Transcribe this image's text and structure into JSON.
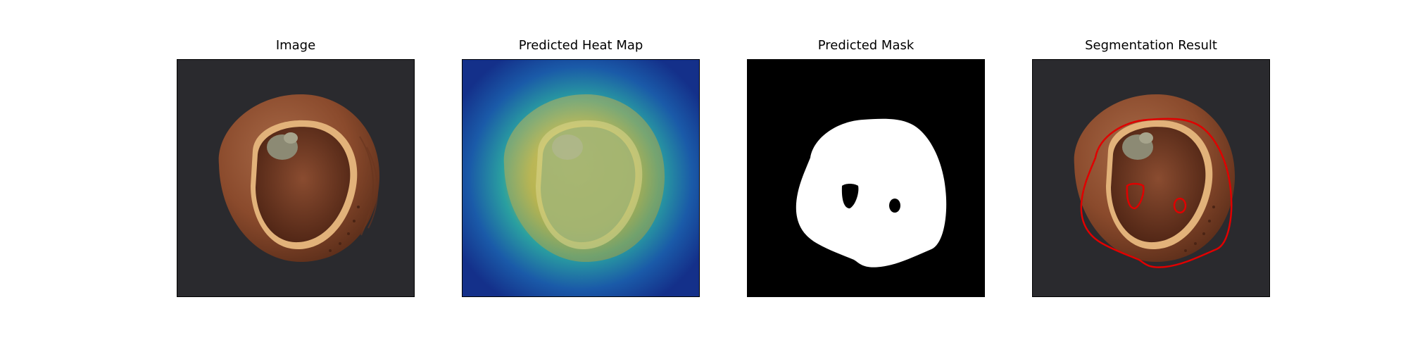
{
  "figure": {
    "panels": [
      {
        "title": "Image"
      },
      {
        "title": "Predicted Heat Map"
      },
      {
        "title": "Predicted Mask"
      },
      {
        "title": "Segmentation Result"
      }
    ]
  },
  "colors": {
    "background": "#2a2a2e",
    "hazelnut_shell": "#8a4a2c",
    "kernel": "#6d3a24",
    "heatmap_low": "#14308a",
    "heatmap_mid": "#2aa0a0",
    "heatmap_high": "#c8c040",
    "mask_foreground": "#ffffff",
    "mask_background": "#000000",
    "contour": "#e00000"
  }
}
